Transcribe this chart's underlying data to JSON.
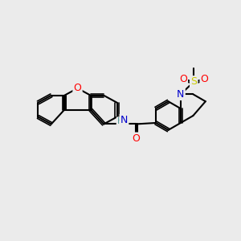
{
  "bg_color": "#ebebeb",
  "bond_color": "#000000",
  "bond_width": 1.5,
  "atom_colors": {
    "O": "#ff0000",
    "N": "#0000cc",
    "S": "#cccc00",
    "H": "#4a9090",
    "C": "#000000"
  },
  "figsize": [
    3.0,
    3.0
  ],
  "dpi": 100
}
